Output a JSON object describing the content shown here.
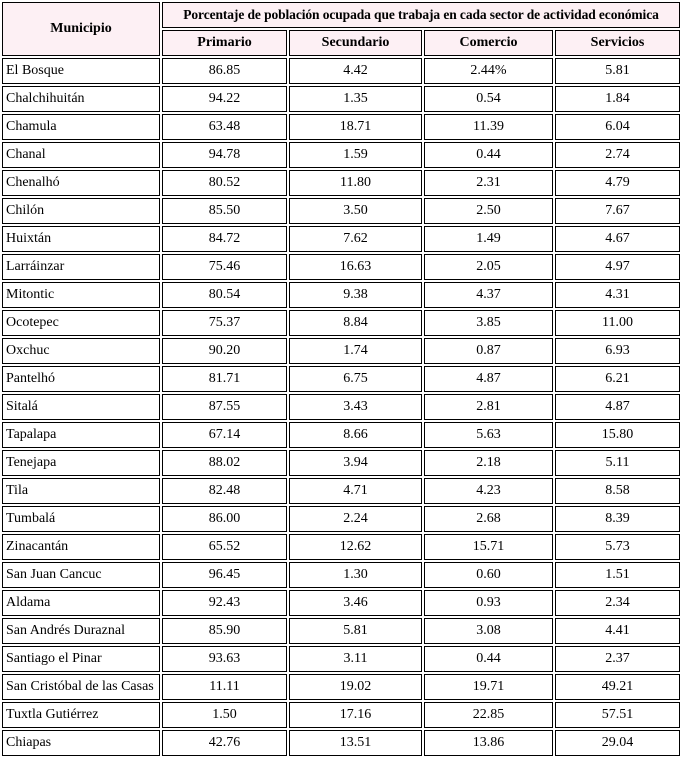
{
  "table": {
    "header": {
      "municipio_label": "Municipio",
      "group_title": "Porcentaje de población ocupada que trabaja en cada sector de actividad económica",
      "columns": [
        "Primario",
        "Secundario",
        "Comercio",
        "Servicios"
      ]
    },
    "rows": [
      {
        "municipio": "El Bosque",
        "values": [
          "86.85",
          "4.42",
          "2.44%",
          "5.81"
        ]
      },
      {
        "municipio": "Chalchihuitán",
        "values": [
          "94.22",
          "1.35",
          "0.54",
          "1.84"
        ]
      },
      {
        "municipio": "Chamula",
        "values": [
          "63.48",
          "18.71",
          "11.39",
          "6.04"
        ]
      },
      {
        "municipio": "Chanal",
        "values": [
          "94.78",
          "1.59",
          "0.44",
          "2.74"
        ]
      },
      {
        "municipio": "Chenalhó",
        "values": [
          "80.52",
          "11.80",
          "2.31",
          "4.79"
        ]
      },
      {
        "municipio": "Chilón",
        "values": [
          "85.50",
          "3.50",
          "2.50",
          "7.67"
        ]
      },
      {
        "municipio": "Huixtán",
        "values": [
          "84.72",
          "7.62",
          "1.49",
          "4.67"
        ]
      },
      {
        "municipio": "Larráinzar",
        "values": [
          "75.46",
          "16.63",
          "2.05",
          "4.97"
        ]
      },
      {
        "municipio": "Mitontic",
        "values": [
          "80.54",
          "9.38",
          "4.37",
          "4.31"
        ]
      },
      {
        "municipio": "Ocotepec",
        "values": [
          "75.37",
          "8.84",
          "3.85",
          "11.00"
        ]
      },
      {
        "municipio": "Oxchuc",
        "values": [
          "90.20",
          "1.74",
          "0.87",
          "6.93"
        ]
      },
      {
        "municipio": "Pantelhó",
        "values": [
          "81.71",
          "6.75",
          "4.87",
          "6.21"
        ]
      },
      {
        "municipio": "Sitalá",
        "values": [
          "87.55",
          "3.43",
          "2.81",
          "4.87"
        ]
      },
      {
        "municipio": "Tapalapa",
        "values": [
          "67.14",
          "8.66",
          "5.63",
          "15.80"
        ]
      },
      {
        "municipio": "Tenejapa",
        "values": [
          "88.02",
          "3.94",
          "2.18",
          "5.11"
        ]
      },
      {
        "municipio": "Tila",
        "values": [
          "82.48",
          "4.71",
          "4.23",
          "8.58"
        ]
      },
      {
        "municipio": "Tumbalá",
        "values": [
          "86.00",
          "2.24",
          "2.68",
          "8.39"
        ]
      },
      {
        "municipio": "Zinacantán",
        "values": [
          "65.52",
          "12.62",
          "15.71",
          "5.73"
        ]
      },
      {
        "municipio": "San Juan Cancuc",
        "values": [
          "96.45",
          "1.30",
          "0.60",
          "1.51"
        ]
      },
      {
        "municipio": "Aldama",
        "values": [
          "92.43",
          "3.46",
          "0.93",
          "2.34"
        ]
      },
      {
        "municipio": "San Andrés Duraznal",
        "values": [
          "85.90",
          "5.81",
          "3.08",
          "4.41"
        ]
      },
      {
        "municipio": "Santiago el Pinar",
        "values": [
          "93.63",
          "3.11",
          "0.44",
          "2.37"
        ]
      },
      {
        "municipio": "San Cristóbal de las Casas",
        "values": [
          "11.11",
          "19.02",
          "19.71",
          "49.21"
        ]
      },
      {
        "municipio": "Tuxtla Gutiérrez",
        "values": [
          "1.50",
          "17.16",
          "22.85",
          "57.51"
        ]
      },
      {
        "municipio": "Chiapas",
        "values": [
          "42.76",
          "13.51",
          "13.86",
          "29.04"
        ]
      }
    ]
  },
  "colors": {
    "header_background": "#fdf0f4",
    "row_background": "#ffffff",
    "border": "#000000",
    "text": "#000000"
  }
}
